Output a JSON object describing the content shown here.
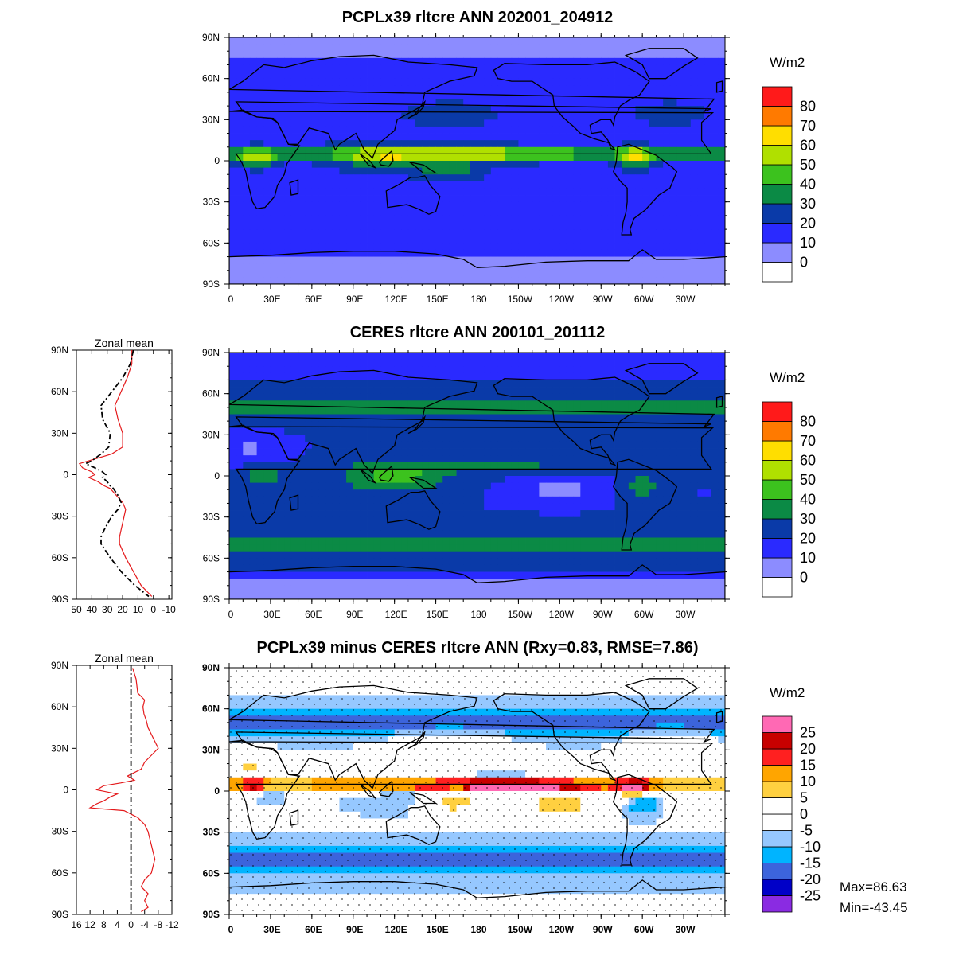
{
  "panels": [
    {
      "id": "model",
      "title": "PCPLx39 rltcre ANN 202001_204912",
      "units": "W/m2",
      "colorbar": {
        "colors": [
          "#ffffff",
          "#8c8cff",
          "#2a2aff",
          "#0a3aa8",
          "#0b8a45",
          "#3cc21e",
          "#b0e000",
          "#ffde00",
          "#ff7a00",
          "#ff1a1a"
        ],
        "labels": [
          "0",
          "10",
          "20",
          "30",
          "40",
          "50",
          "60",
          "70",
          "80"
        ]
      },
      "zonal_mean": null
    },
    {
      "id": "obs",
      "title": "CERES rltcre ANN 200101_201112",
      "units": "W/m2",
      "colorbar": {
        "colors": [
          "#ffffff",
          "#8c8cff",
          "#2a2aff",
          "#0a3aa8",
          "#0b8a45",
          "#3cc21e",
          "#b0e000",
          "#ffde00",
          "#ff7a00",
          "#ff1a1a"
        ],
        "labels": [
          "0",
          "10",
          "20",
          "30",
          "40",
          "50",
          "60",
          "70",
          "80"
        ]
      },
      "zonal_mean": {
        "title": "Zonal mean",
        "x_ticks": [
          "50",
          "40",
          "30",
          "20",
          "10",
          "0",
          "-10"
        ],
        "x_min": 50,
        "x_max": -12,
        "series": [
          {
            "color": "#e41a1c",
            "dash": false,
            "lat": [
              90,
              80,
              70,
              60,
              50,
              40,
              30,
              20,
              15,
              10,
              8,
              5,
              2,
              0,
              -2,
              -5,
              -8,
              -10,
              -15,
              -20,
              -25,
              -30,
              -40,
              -45,
              -50,
              -60,
              -70,
              -80,
              -88
            ],
            "val": [
              14,
              14,
              17,
              21,
              25,
              23,
              20,
              20,
              27,
              42,
              48,
              46,
              40,
              38,
              42,
              36,
              32,
              28,
              24,
              20,
              18,
              19,
              21,
              22,
              22,
              18,
              13,
              8,
              1
            ]
          },
          {
            "color": "#000000",
            "dash": true,
            "lat": [
              90,
              80,
              70,
              60,
              50,
              40,
              30,
              20,
              15,
              10,
              8,
              5,
              2,
              0,
              -2,
              -5,
              -8,
              -10,
              -15,
              -20,
              -25,
              -30,
              -40,
              -45,
              -50,
              -60,
              -70,
              -80,
              -88
            ],
            "val": [
              13,
              15,
              20,
              27,
              34,
              33,
              28,
              29,
              34,
              40,
              44,
              38,
              33,
              31,
              33,
              30,
              28,
              26,
              23,
              21,
              23,
              27,
              32,
              34,
              34,
              28,
              21,
              12,
              3
            ]
          }
        ]
      }
    },
    {
      "id": "diff",
      "title": "PCPLx39 minus CERES rltcre ANN (Rxy=0.83, RMSE=7.86)",
      "units": "W/m2",
      "colorbar": {
        "colors": [
          "#8a2be2",
          "#0000c8",
          "#3c64dc",
          "#00b4ff",
          "#96c8ff",
          "#ffffff",
          "#ffffff",
          "#ffd040",
          "#ffa500",
          "#ff2020",
          "#c80000",
          "#ff69b4"
        ],
        "labels": [
          "-25",
          "-20",
          "-15",
          "-10",
          "-5",
          "0",
          "5",
          "10",
          "15",
          "20",
          "25"
        ]
      },
      "zonal_mean": {
        "title": "Zonal mean",
        "x_ticks": [
          "16",
          "12",
          "8",
          "4",
          "0",
          "-4",
          "-8",
          "-12"
        ],
        "x_min": 16,
        "x_max": -12,
        "series": [
          {
            "color": "#e41a1c",
            "dash": false,
            "lat": [
              88,
              80,
              70,
              65,
              60,
              55,
              50,
              45,
              40,
              35,
              30,
              25,
              20,
              15,
              10,
              7,
              5,
              3,
              0,
              -3,
              -5,
              -8,
              -10,
              -13,
              -15,
              -20,
              -25,
              -30,
              -35,
              -40,
              -45,
              -50,
              -55,
              -60,
              -65,
              -70,
              -75,
              -80,
              -85,
              -88
            ],
            "val": [
              -0.5,
              -1.5,
              -2,
              -4,
              -3.5,
              -3.8,
              -4.5,
              -5,
              -6,
              -7,
              -8,
              -6,
              -4,
              -3,
              1,
              -1,
              3,
              8,
              10,
              4,
              6,
              8,
              10,
              12,
              2,
              -2,
              -4,
              -5,
              -5.5,
              -6,
              -6.5,
              -7,
              -6.5,
              -6,
              -4,
              -3,
              -5,
              -4,
              -5,
              -3
            ]
          },
          {
            "color": "#000000",
            "dash": true,
            "lat": [
              90,
              -90
            ],
            "val": [
              0,
              0
            ]
          }
        ]
      }
    }
  ],
  "map_axes": {
    "lat_labels": [
      "90N",
      "60N",
      "30N",
      "0",
      "30S",
      "60S",
      "90S"
    ],
    "lon_labels": [
      "0",
      "30E",
      "60E",
      "90E",
      "120E",
      "150E",
      "180",
      "150W",
      "120W",
      "90W",
      "60W",
      "30W"
    ]
  },
  "zonal_lat_labels": [
    "90N",
    "60N",
    "30N",
    "0",
    "30S",
    "60S",
    "90S"
  ],
  "stats": {
    "max": "Max=86.63",
    "min": "Min=-43.45"
  }
}
